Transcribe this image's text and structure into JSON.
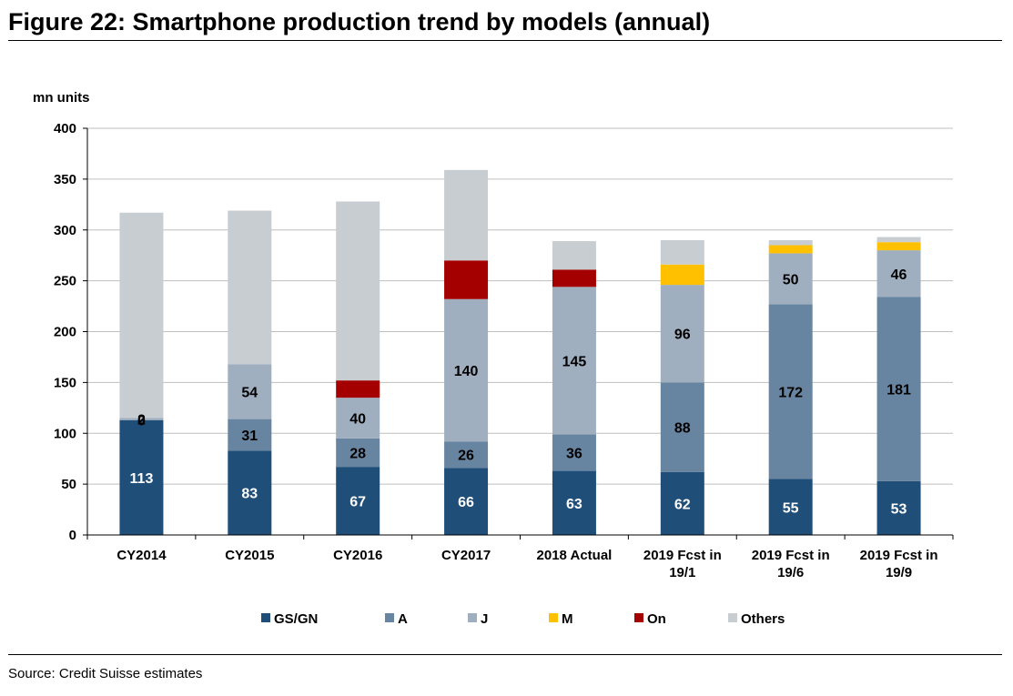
{
  "figure": {
    "title": "Figure 22: Smartphone production trend by models (annual)",
    "source": "Source: Credit Suisse estimates"
  },
  "chart_data": {
    "type": "bar",
    "stacked": true,
    "ylabel": "mn units",
    "xlabel": "",
    "ylim": [
      0,
      400
    ],
    "yticks": [
      0,
      50,
      100,
      150,
      200,
      250,
      300,
      350,
      400
    ],
    "grid": true,
    "legend_position": "bottom",
    "categories": [
      [
        "CY2014"
      ],
      [
        "CY2015"
      ],
      [
        "CY2016"
      ],
      [
        "CY2017"
      ],
      [
        "2018 Actual"
      ],
      [
        "2019 Fcst in",
        "19/1"
      ],
      [
        "2019 Fcst in",
        "19/6"
      ],
      [
        "2019 Fcst in",
        "19/9"
      ]
    ],
    "series": [
      {
        "name": "GS/GN",
        "color": "#1f4e79",
        "label_color": "#ffffff",
        "values": [
          113,
          83,
          67,
          66,
          63,
          62,
          55,
          53
        ],
        "labels": [
          "113",
          "83",
          "67",
          "66",
          "63",
          "62",
          "55",
          "53"
        ]
      },
      {
        "name": "A",
        "color": "#6784a0",
        "label_color": "#000000",
        "values": [
          0,
          31,
          28,
          26,
          36,
          88,
          172,
          181
        ],
        "labels": [
          "0",
          "31",
          "28",
          "26",
          "36",
          "88",
          "172",
          "181"
        ]
      },
      {
        "name": "J",
        "color": "#a0afbf",
        "label_color": "#000000",
        "values": [
          2,
          54,
          40,
          140,
          145,
          96,
          50,
          46
        ],
        "labels": [
          "2",
          "54",
          "40",
          "140",
          "145",
          "96",
          "50",
          "46"
        ]
      },
      {
        "name": "M",
        "color": "#ffc000",
        "label_color": "#000000",
        "values": [
          0,
          0,
          0,
          0,
          0,
          20,
          8,
          8
        ],
        "labels": [
          "",
          "",
          "",
          "",
          "",
          "",
          "",
          ""
        ]
      },
      {
        "name": "On",
        "color": "#a50000",
        "label_color": "#ffffff",
        "values": [
          0,
          0,
          17,
          38,
          17,
          0,
          0,
          0
        ],
        "labels": [
          "",
          "",
          "",
          "",
          "",
          "",
          "",
          ""
        ]
      },
      {
        "name": "Others",
        "color": "#c8cdd2",
        "label_color": "#000000",
        "values": [
          202,
          151,
          176,
          89,
          28,
          24,
          5,
          5
        ],
        "labels": [
          "",
          "",
          "",
          "",
          "",
          "",
          "",
          ""
        ]
      }
    ]
  }
}
